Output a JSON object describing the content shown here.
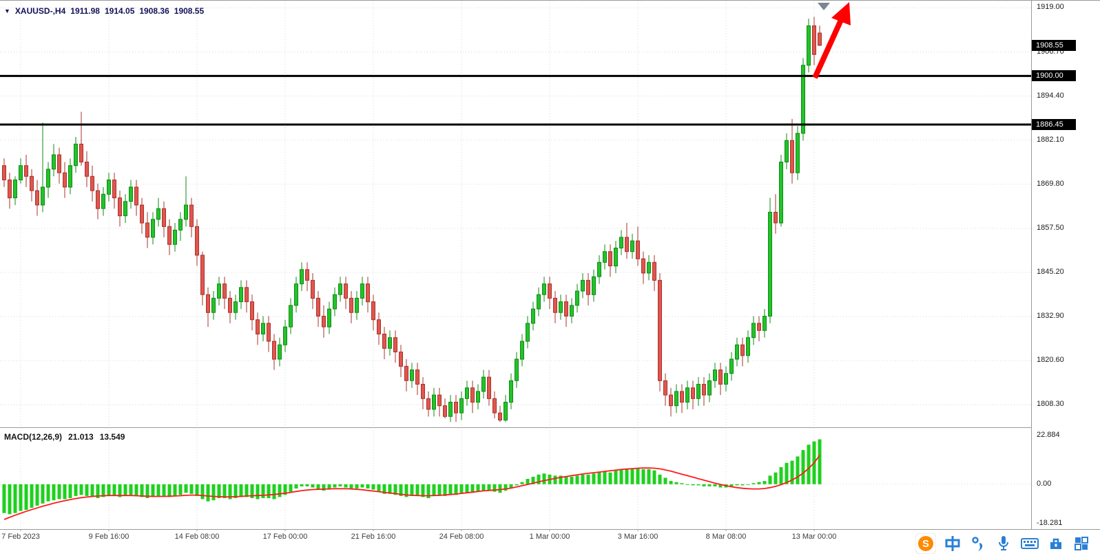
{
  "header": {
    "collapse_glyph": "▼",
    "symbol_timeframe": "XAUUSD-,H4",
    "ohlc": {
      "open": "1911.98",
      "high": "1914.05",
      "low": "1908.36",
      "close": "1908.55"
    }
  },
  "macd_panel": {
    "label": "MACD(12,26,9)",
    "main_value": "21.013",
    "signal_value": "13.549"
  },
  "price_axis": {
    "markers": [
      {
        "label": "1908.55",
        "price": 1908.55
      },
      {
        "label": "1900.00",
        "price": 1900.0
      },
      {
        "label": "1886.45",
        "price": 1886.45
      }
    ]
  },
  "colors": {
    "bull": "#22c32a",
    "bull_border": "#0d8a12",
    "bear": "#e0564e",
    "bear_border": "#a8312b",
    "macd_hist": "#1ed11e",
    "macd_signal": "#ff1a1a",
    "hline": "#000000",
    "arrow": "#ff0000",
    "grid": "#d6d6d6",
    "axis_border": "#9a9a9a",
    "marker_bg": "#000000",
    "marker_text": "#ffffff",
    "info_text": "#10105a",
    "icon_blue": "#2a7fd4",
    "icon_orange": "#ff8a00",
    "annotation_triangle": "#7a8691"
  },
  "chart_data": {
    "type": "candlestick",
    "symbol": "XAUUSD-",
    "timeframe": "H4",
    "y_axis": {
      "ticks": [
        "1919.00",
        "1906.70",
        "1894.40",
        "1882.10",
        "1869.80",
        "1857.50",
        "1845.20",
        "1832.90",
        "1820.60",
        "1808.30"
      ],
      "range": [
        1802,
        1921
      ]
    },
    "macd_axis": {
      "ticks": [
        {
          "text": "22.884",
          "value": 22.884
        },
        {
          "text": "0.00",
          "value": 0
        },
        {
          "text": "-18.281",
          "value": -18.281
        }
      ],
      "range": [
        -21,
        26
      ]
    },
    "x_ticks": [
      {
        "text": "7 Feb 2023",
        "index": 3
      },
      {
        "text": "9 Feb 16:00",
        "index": 19
      },
      {
        "text": "14 Feb 08:00",
        "index": 35
      },
      {
        "text": "17 Feb 00:00",
        "index": 51
      },
      {
        "text": "21 Feb 16:00",
        "index": 67
      },
      {
        "text": "24 Feb 08:00",
        "index": 83
      },
      {
        "text": "1 Mar 00:00",
        "index": 99
      },
      {
        "text": "3 Mar 16:00",
        "index": 115
      },
      {
        "text": "8 Mar 08:00",
        "index": 131
      },
      {
        "text": "13 Mar 00:00",
        "index": 147
      }
    ],
    "horizontal_lines": [
      1900.0,
      1886.45
    ],
    "candles": [
      [
        1875,
        1877,
        1869,
        1871
      ],
      [
        1871,
        1873,
        1863,
        1866
      ],
      [
        1866,
        1872,
        1864,
        1871
      ],
      [
        1871,
        1877,
        1870,
        1875
      ],
      [
        1875,
        1878,
        1869,
        1872
      ],
      [
        1872,
        1874,
        1865,
        1868
      ],
      [
        1868,
        1871,
        1861,
        1864
      ],
      [
        1864,
        1887,
        1862,
        1869
      ],
      [
        1869,
        1876,
        1866,
        1874
      ],
      [
        1874,
        1881,
        1872,
        1878
      ],
      [
        1878,
        1880,
        1870,
        1873
      ],
      [
        1873,
        1876,
        1866,
        1869
      ],
      [
        1869,
        1877,
        1867,
        1875
      ],
      [
        1875,
        1883,
        1873,
        1881
      ],
      [
        1881,
        1890,
        1875,
        1876
      ],
      [
        1876,
        1879,
        1869,
        1872
      ],
      [
        1872,
        1875,
        1865,
        1868
      ],
      [
        1868,
        1870,
        1860,
        1863
      ],
      [
        1863,
        1869,
        1861,
        1867
      ],
      [
        1867,
        1873,
        1865,
        1871
      ],
      [
        1871,
        1873,
        1863,
        1866
      ],
      [
        1866,
        1868,
        1858,
        1861
      ],
      [
        1861,
        1867,
        1859,
        1865
      ],
      [
        1865,
        1871,
        1863,
        1869
      ],
      [
        1869,
        1871,
        1861,
        1864
      ],
      [
        1864,
        1866,
        1856,
        1859
      ],
      [
        1859,
        1862,
        1852,
        1855
      ],
      [
        1855,
        1862,
        1853,
        1860
      ],
      [
        1860,
        1866,
        1858,
        1863
      ],
      [
        1863,
        1865,
        1855,
        1858
      ],
      [
        1858,
        1860,
        1850,
        1853
      ],
      [
        1853,
        1859,
        1851,
        1857
      ],
      [
        1857,
        1862,
        1854,
        1860
      ],
      [
        1860,
        1872,
        1858,
        1864
      ],
      [
        1864,
        1866,
        1855,
        1858
      ],
      [
        1858,
        1860,
        1847,
        1850
      ],
      [
        1850,
        1851,
        1836,
        1839
      ],
      [
        1839,
        1841,
        1830,
        1834
      ],
      [
        1834,
        1840,
        1832,
        1838
      ],
      [
        1838,
        1844,
        1836,
        1842
      ],
      [
        1842,
        1844,
        1835,
        1838
      ],
      [
        1838,
        1840,
        1831,
        1834
      ],
      [
        1834,
        1839,
        1832,
        1837
      ],
      [
        1837,
        1843,
        1835,
        1841
      ],
      [
        1841,
        1843,
        1834,
        1837
      ],
      [
        1837,
        1839,
        1829,
        1832
      ],
      [
        1832,
        1834,
        1825,
        1828
      ],
      [
        1828,
        1833,
        1826,
        1831
      ],
      [
        1831,
        1833,
        1823,
        1826
      ],
      [
        1826,
        1828,
        1818,
        1821
      ],
      [
        1821,
        1827,
        1819,
        1825
      ],
      [
        1825,
        1832,
        1823,
        1830
      ],
      [
        1830,
        1838,
        1828,
        1836
      ],
      [
        1836,
        1844,
        1834,
        1842
      ],
      [
        1842,
        1848,
        1840,
        1846
      ],
      [
        1846,
        1848,
        1840,
        1843
      ],
      [
        1843,
        1845,
        1835,
        1838
      ],
      [
        1838,
        1840,
        1830,
        1833
      ],
      [
        1833,
        1836,
        1827,
        1830
      ],
      [
        1830,
        1837,
        1828,
        1835
      ],
      [
        1835,
        1841,
        1833,
        1839
      ],
      [
        1839,
        1844,
        1837,
        1842
      ],
      [
        1842,
        1844,
        1835,
        1838
      ],
      [
        1838,
        1840,
        1831,
        1834
      ],
      [
        1834,
        1840,
        1832,
        1838
      ],
      [
        1838,
        1844,
        1836,
        1842
      ],
      [
        1842,
        1844,
        1834,
        1837
      ],
      [
        1837,
        1839,
        1829,
        1832
      ],
      [
        1832,
        1834,
        1825,
        1828
      ],
      [
        1828,
        1830,
        1821,
        1824
      ],
      [
        1824,
        1829,
        1822,
        1827
      ],
      [
        1827,
        1829,
        1820,
        1823
      ],
      [
        1823,
        1825,
        1816,
        1819
      ],
      [
        1819,
        1821,
        1812,
        1815
      ],
      [
        1815,
        1820,
        1813,
        1818
      ],
      [
        1818,
        1820,
        1811,
        1814
      ],
      [
        1814,
        1816,
        1807,
        1810
      ],
      [
        1810,
        1812,
        1805,
        1807
      ],
      [
        1807,
        1813,
        1805,
        1811
      ],
      [
        1811,
        1813,
        1805,
        1808
      ],
      [
        1808,
        1810,
        1804.5,
        1805
      ],
      [
        1805,
        1811,
        1803.5,
        1809
      ],
      [
        1809,
        1811,
        1803.5,
        1806
      ],
      [
        1806,
        1812,
        1804,
        1810
      ],
      [
        1810,
        1815,
        1808,
        1813
      ],
      [
        1813,
        1815,
        1806,
        1809
      ],
      [
        1809,
        1814,
        1807,
        1812
      ],
      [
        1812,
        1818,
        1810,
        1816
      ],
      [
        1816,
        1818,
        1808,
        1810
      ],
      [
        1810,
        1812,
        1804.5,
        1806
      ],
      [
        1806,
        1808,
        1803.5,
        1804
      ],
      [
        1804,
        1811,
        1803.5,
        1809
      ],
      [
        1809,
        1817,
        1807,
        1815
      ],
      [
        1815,
        1823,
        1813,
        1821
      ],
      [
        1821,
        1828,
        1819,
        1826
      ],
      [
        1826,
        1833,
        1824,
        1831
      ],
      [
        1831,
        1837,
        1829,
        1835
      ],
      [
        1835,
        1841,
        1833,
        1839
      ],
      [
        1839,
        1844,
        1837,
        1842
      ],
      [
        1842,
        1844,
        1835,
        1838
      ],
      [
        1838,
        1840,
        1831,
        1834
      ],
      [
        1834,
        1839,
        1832,
        1837
      ],
      [
        1837,
        1839,
        1830,
        1833
      ],
      [
        1833,
        1838,
        1831,
        1836
      ],
      [
        1836,
        1842,
        1834,
        1840
      ],
      [
        1840,
        1845,
        1838,
        1843
      ],
      [
        1843,
        1845,
        1836,
        1839
      ],
      [
        1839,
        1846,
        1837,
        1844
      ],
      [
        1844,
        1850,
        1842,
        1848
      ],
      [
        1848,
        1853,
        1846,
        1851
      ],
      [
        1851,
        1853,
        1844,
        1847
      ],
      [
        1847,
        1854,
        1845,
        1852
      ],
      [
        1852,
        1857,
        1850,
        1855
      ],
      [
        1855,
        1859,
        1849,
        1851
      ],
      [
        1851,
        1856,
        1849,
        1854
      ],
      [
        1854,
        1858,
        1847,
        1849
      ],
      [
        1849,
        1851,
        1842,
        1845
      ],
      [
        1845,
        1850,
        1843,
        1848
      ],
      [
        1848,
        1850,
        1840,
        1843
      ],
      [
        1843,
        1845,
        1812,
        1815
      ],
      [
        1815,
        1817,
        1808,
        1811
      ],
      [
        1811,
        1813,
        1805,
        1808
      ],
      [
        1808,
        1814,
        1806,
        1812
      ],
      [
        1812,
        1814,
        1806,
        1809
      ],
      [
        1809,
        1815,
        1807,
        1813
      ],
      [
        1813,
        1815,
        1807,
        1810
      ],
      [
        1810,
        1816,
        1808,
        1814
      ],
      [
        1814,
        1816,
        1808,
        1811
      ],
      [
        1811,
        1817,
        1809,
        1815
      ],
      [
        1815,
        1820,
        1813,
        1818
      ],
      [
        1818,
        1820,
        1811,
        1814
      ],
      [
        1814,
        1819,
        1812,
        1817
      ],
      [
        1817,
        1823,
        1815,
        1821
      ],
      [
        1821,
        1827,
        1819,
        1825
      ],
      [
        1825,
        1827,
        1819,
        1822
      ],
      [
        1822,
        1829,
        1820,
        1827
      ],
      [
        1827,
        1833,
        1825,
        1831
      ],
      [
        1831,
        1833,
        1826,
        1829
      ],
      [
        1829,
        1835,
        1827,
        1833
      ],
      [
        1833,
        1866,
        1831,
        1862
      ],
      [
        1862,
        1867,
        1856,
        1859
      ],
      [
        1859,
        1878,
        1858,
        1876
      ],
      [
        1876,
        1884,
        1874,
        1882
      ],
      [
        1882,
        1888,
        1870,
        1873
      ],
      [
        1873,
        1886,
        1871,
        1884
      ],
      [
        1884,
        1905,
        1882,
        1903
      ],
      [
        1903,
        1916,
        1901,
        1914
      ],
      [
        1914,
        1916.5,
        1903,
        1906
      ],
      [
        1911.98,
        1914.05,
        1908.36,
        1908.55
      ]
    ],
    "macd": {
      "params": [
        12,
        26,
        9
      ],
      "histogram": [
        -13.5,
        -14,
        -13.5,
        -12.5,
        -12,
        -11,
        -10,
        -9,
        -8,
        -7.5,
        -7,
        -7,
        -6.5,
        -5.5,
        -5,
        -5.5,
        -6,
        -6.5,
        -6,
        -5.5,
        -5.5,
        -6,
        -5.5,
        -5,
        -5.5,
        -6,
        -6.5,
        -6,
        -5.5,
        -5.5,
        -6,
        -5.5,
        -5,
        -4,
        -4.5,
        -5.5,
        -7,
        -8,
        -7.5,
        -6.5,
        -6.5,
        -7,
        -6.5,
        -6,
        -6,
        -6.5,
        -7,
        -6.5,
        -6.5,
        -7,
        -6,
        -5,
        -3.5,
        -2,
        -1,
        -1,
        -1.5,
        -2.5,
        -3,
        -2.5,
        -1.5,
        -1,
        -1.5,
        -2,
        -2,
        -1.5,
        -2,
        -2.5,
        -3.5,
        -4.5,
        -4.5,
        -5,
        -5.5,
        -6,
        -5.5,
        -5.5,
        -6,
        -6.5,
        -5.5,
        -5.5,
        -5.5,
        -5,
        -5,
        -4.5,
        -4,
        -4,
        -3.5,
        -3,
        -3,
        -3.5,
        -4,
        -3,
        -2,
        -0.5,
        1,
        2.5,
        3.5,
        4.5,
        5,
        4.5,
        4,
        4,
        3.5,
        3.5,
        4,
        4.5,
        4.5,
        5,
        5.5,
        6,
        5.5,
        6.5,
        7,
        7,
        7.5,
        7.5,
        7,
        7,
        6.5,
        4.5,
        3,
        1.5,
        1,
        0.5,
        0,
        -0.5,
        -0.5,
        -1,
        -1,
        -1,
        -1.5,
        -1.5,
        -1,
        -0.5,
        -0.5,
        0,
        0.5,
        1,
        1.5,
        4,
        5.5,
        8,
        10,
        11,
        13,
        16,
        18.5,
        20,
        21.013
      ],
      "signal": [
        -16.5,
        -15.5,
        -14.5,
        -13.6,
        -12.7,
        -11.9,
        -11.1,
        -10.3,
        -9.6,
        -8.9,
        -8.3,
        -7.7,
        -7.2,
        -6.7,
        -6.3,
        -6.0,
        -5.7,
        -5.5,
        -5.4,
        -5.3,
        -5.3,
        -5.3,
        -5.3,
        -5.3,
        -5.4,
        -5.5,
        -5.6,
        -5.7,
        -5.7,
        -5.7,
        -5.6,
        -5.5,
        -5.4,
        -5.2,
        -5.1,
        -5.1,
        -5.3,
        -5.5,
        -5.7,
        -5.8,
        -5.9,
        -5.9,
        -5.8,
        -5.7,
        -5.5,
        -5.4,
        -5.3,
        -5.2,
        -5.0,
        -4.8,
        -4.5,
        -4.2,
        -3.8,
        -3.4,
        -3.0,
        -2.7,
        -2.5,
        -2.4,
        -2.3,
        -2.2,
        -2.1,
        -2.1,
        -2.1,
        -2.2,
        -2.4,
        -2.6,
        -2.9,
        -3.2,
        -3.5,
        -3.8,
        -4.1,
        -4.4,
        -4.7,
        -5.0,
        -5.2,
        -5.3,
        -5.4,
        -5.4,
        -5.3,
        -5.2,
        -5.0,
        -4.8,
        -4.6,
        -4.3,
        -4.0,
        -3.7,
        -3.4,
        -3.1,
        -2.9,
        -2.7,
        -2.5,
        -2.2,
        -1.8,
        -1.3,
        -0.7,
        -0.1,
        0.5,
        1.1,
        1.7,
        2.2,
        2.7,
        3.2,
        3.6,
        4.0,
        4.4,
        4.8,
        5.1,
        5.4,
        5.7,
        6.0,
        6.3,
        6.6,
        6.9,
        7.1,
        7.3,
        7.5,
        7.6,
        7.6,
        7.5,
        7.2,
        6.7,
        6.1,
        5.4,
        4.7,
        4.0,
        3.3,
        2.6,
        1.9,
        1.2,
        0.5,
        -0.1,
        -0.7,
        -1.2,
        -1.6,
        -1.9,
        -2.1,
        -2.2,
        -2.2,
        -2.0,
        -1.6,
        -1.0,
        -0.2,
        0.8,
        2.0,
        3.4,
        5.2,
        7.4,
        10.0,
        13.549
      ]
    }
  },
  "taskbar": {
    "icons": [
      "ime-logo",
      "chinese-mode",
      "punctuation-mode",
      "microphone",
      "soft-keyboard",
      "ime-toolbox",
      "ime-grid"
    ]
  }
}
